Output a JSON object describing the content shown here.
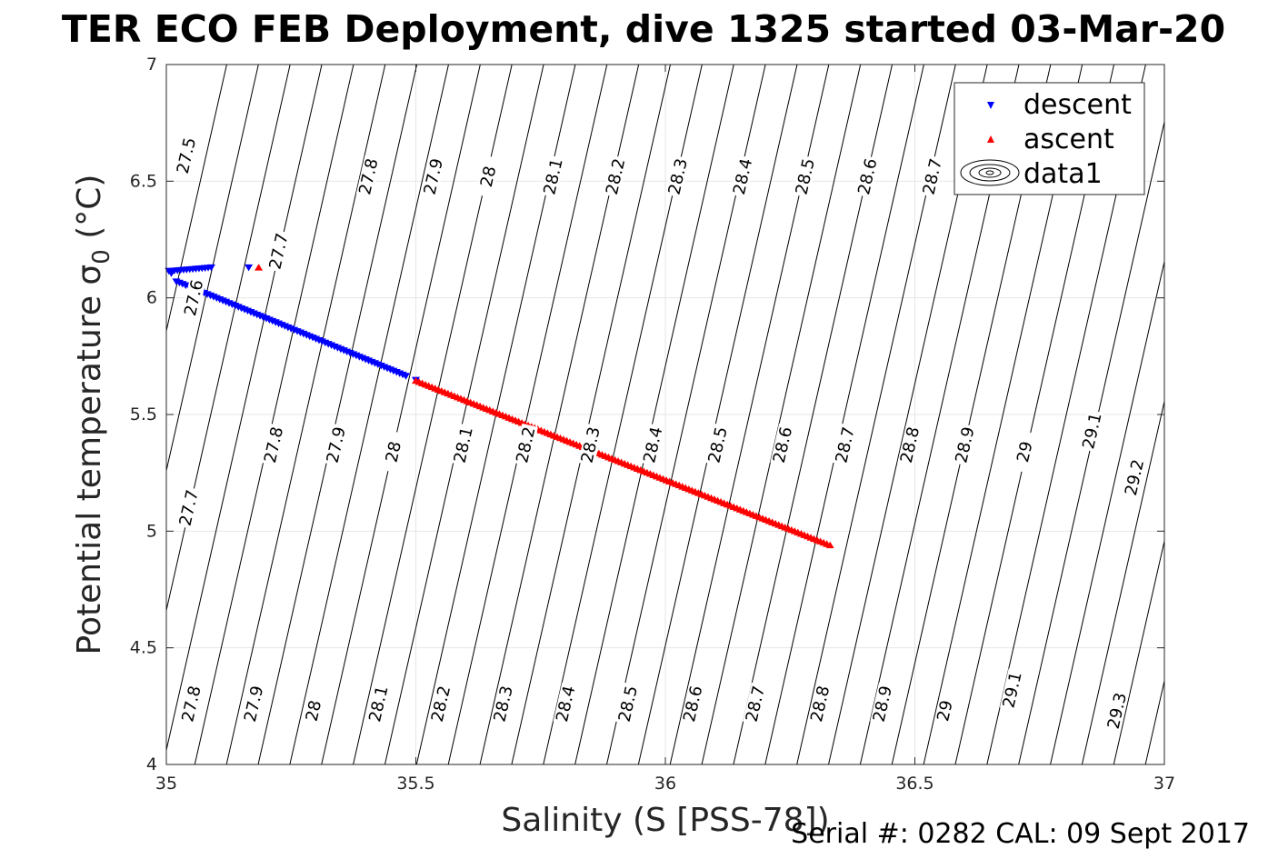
{
  "title": "TER ECO FEB Deployment, dive 1325 started 03-Mar-20",
  "footer": "Serial #: 0282  CAL: 09 Sept 2017",
  "chart_data": {
    "type": "scatter",
    "xlabel": "Salinity (S [PSS-78])",
    "ylabel_main": "Potential temperature ",
    "ylabel_sigma": "σ",
    "ylabel_sub": "0",
    "ylabel_unit": " (°C)",
    "xlim": [
      35,
      37
    ],
    "ylim": [
      4,
      7
    ],
    "xticks": [
      35,
      35.5,
      36,
      36.5,
      37
    ],
    "xtick_labels": [
      "35",
      "35.5",
      "36",
      "36.5",
      "37"
    ],
    "yticks": [
      4,
      4.5,
      5,
      5.5,
      6,
      6.5,
      7
    ],
    "ytick_labels": [
      "4",
      "4.5",
      "5",
      "5.5",
      "6",
      "6.5",
      "7"
    ],
    "grid": true,
    "legend_position": "top-right",
    "legend": [
      "descent",
      "ascent",
      "data1"
    ],
    "series": [
      {
        "name": "descent",
        "color": "#0000ff",
        "marker": "triangle-down",
        "segments": [
          {
            "x_start": 35.01,
            "y_start": 6.115,
            "x_end": 35.09,
            "y_end": 6.13,
            "n": 14
          },
          {
            "x_start": 35.02,
            "y_start": 6.07,
            "x_end": 35.48,
            "y_end": 5.665,
            "n": 75
          }
        ],
        "points": [
          [
            35.005,
            6.115
          ],
          [
            35.01,
            6.105
          ],
          [
            35.165,
            6.13
          ],
          [
            35.5,
            5.648
          ]
        ]
      },
      {
        "name": "ascent",
        "color": "#ff0000",
        "marker": "triangle-up",
        "segments": [
          {
            "x_start": 35.5,
            "y_start": 5.645,
            "x_end": 36.33,
            "y_end": 4.94,
            "n": 130
          }
        ],
        "points": [
          [
            35.185,
            6.13
          ]
        ]
      }
    ],
    "contours": {
      "name": "data1",
      "type": "sigma0 isopycnals",
      "levels": [
        "27.5",
        "27.6",
        "27.7",
        "27.8",
        "27.9",
        "28",
        "28.1",
        "28.2",
        "28.3",
        "28.4",
        "28.5",
        "28.6",
        "28.7",
        "28.8",
        "28.9",
        "29",
        "29.1",
        "29.2",
        "29.3"
      ],
      "labels": [
        {
          "text": "27.5",
          "x": 35.04,
          "y": 6.61
        },
        {
          "text": "27.6",
          "x": 35.055,
          "y": 6.0
        },
        {
          "text": "27.7",
          "x": 35.225,
          "y": 6.2
        },
        {
          "text": "27.8",
          "x": 35.405,
          "y": 6.52
        },
        {
          "text": "27.9",
          "x": 35.535,
          "y": 6.52
        },
        {
          "text": "28",
          "x": 35.645,
          "y": 6.52
        },
        {
          "text": "28.1",
          "x": 35.775,
          "y": 6.52
        },
        {
          "text": "28.2",
          "x": 35.9,
          "y": 6.52
        },
        {
          "text": "28.3",
          "x": 36.025,
          "y": 6.52
        },
        {
          "text": "28.4",
          "x": 36.155,
          "y": 6.52
        },
        {
          "text": "28.5",
          "x": 36.28,
          "y": 6.52
        },
        {
          "text": "28.6",
          "x": 36.405,
          "y": 6.52
        },
        {
          "text": "28.7",
          "x": 36.535,
          "y": 6.52
        },
        {
          "text": "27.7",
          "x": 35.045,
          "y": 5.1
        },
        {
          "text": "27.8",
          "x": 35.215,
          "y": 5.37
        },
        {
          "text": "27.9",
          "x": 35.34,
          "y": 5.37
        },
        {
          "text": "28",
          "x": 35.455,
          "y": 5.34
        },
        {
          "text": "28.1",
          "x": 35.595,
          "y": 5.37
        },
        {
          "text": "28.2",
          "x": 35.72,
          "y": 5.37
        },
        {
          "text": "28.3",
          "x": 35.85,
          "y": 5.37
        },
        {
          "text": "28.4",
          "x": 35.975,
          "y": 5.37
        },
        {
          "text": "28.5",
          "x": 36.105,
          "y": 5.37
        },
        {
          "text": "28.6",
          "x": 36.235,
          "y": 5.37
        },
        {
          "text": "28.7",
          "x": 36.36,
          "y": 5.37
        },
        {
          "text": "28.8",
          "x": 36.49,
          "y": 5.37
        },
        {
          "text": "28.9",
          "x": 36.6,
          "y": 5.37
        },
        {
          "text": "29",
          "x": 36.72,
          "y": 5.34
        },
        {
          "text": "29.1",
          "x": 36.855,
          "y": 5.43
        },
        {
          "text": "29.2",
          "x": 36.94,
          "y": 5.23
        },
        {
          "text": "27.8",
          "x": 35.05,
          "y": 4.26
        },
        {
          "text": "27.9",
          "x": 35.175,
          "y": 4.26
        },
        {
          "text": "28",
          "x": 35.295,
          "y": 4.23
        },
        {
          "text": "28.1",
          "x": 35.425,
          "y": 4.26
        },
        {
          "text": "28.2",
          "x": 35.55,
          "y": 4.26
        },
        {
          "text": "28.3",
          "x": 35.675,
          "y": 4.26
        },
        {
          "text": "28.4",
          "x": 35.8,
          "y": 4.26
        },
        {
          "text": "28.5",
          "x": 35.925,
          "y": 4.26
        },
        {
          "text": "28.6",
          "x": 36.055,
          "y": 4.26
        },
        {
          "text": "28.7",
          "x": 36.18,
          "y": 4.26
        },
        {
          "text": "28.8",
          "x": 36.31,
          "y": 4.26
        },
        {
          "text": "28.9",
          "x": 36.435,
          "y": 4.26
        },
        {
          "text": "29",
          "x": 36.56,
          "y": 4.23
        },
        {
          "text": "29.1",
          "x": 36.695,
          "y": 4.32
        },
        {
          "text": "29.3",
          "x": 36.905,
          "y": 4.23
        }
      ]
    }
  }
}
